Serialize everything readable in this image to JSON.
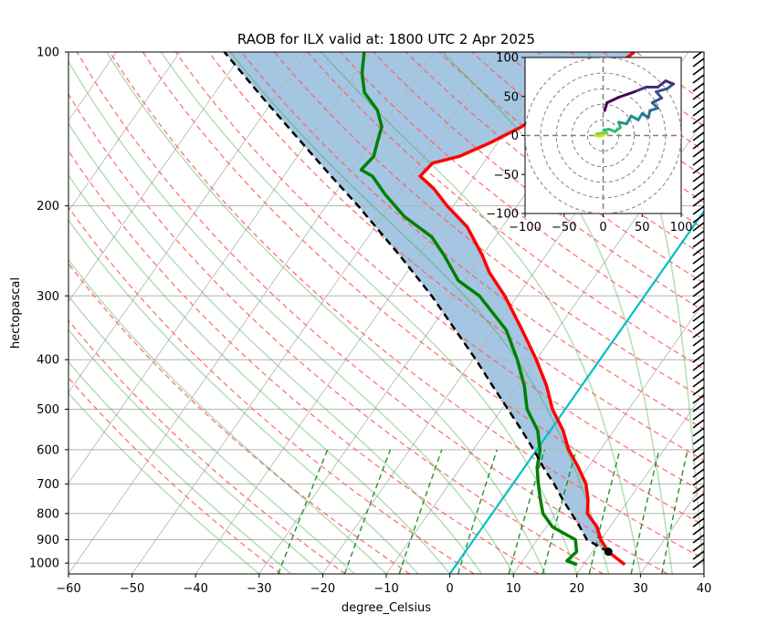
{
  "chart_data": {
    "type": "line",
    "title": "RAOB for ILX valid at: 1800 UTC 2 Apr 2025",
    "xlabel": "degree_Celsius",
    "ylabel": "hectopascal",
    "xlim": [
      -60,
      40
    ],
    "ylim": [
      1050,
      100
    ],
    "x_ticks": [
      "−60",
      "−50",
      "−40",
      "−30",
      "−20",
      "−10",
      "0",
      "10",
      "20",
      "30",
      "40"
    ],
    "y_ticks": [
      "100",
      "200",
      "300",
      "400",
      "500",
      "600",
      "700",
      "800",
      "900",
      "1000"
    ],
    "grid": true,
    "series": [
      {
        "role": "temperature",
        "color": "#ff0000",
        "points": [
          [
            1007,
            26.5
          ],
          [
            950,
            22.5
          ],
          [
            900,
            20.0
          ],
          [
            850,
            18.0
          ],
          [
            800,
            15.0
          ],
          [
            750,
            13.5
          ],
          [
            700,
            11.5
          ],
          [
            650,
            8.5
          ],
          [
            600,
            5.0
          ],
          [
            550,
            2.0
          ],
          [
            500,
            -2.0
          ],
          [
            450,
            -5.5
          ],
          [
            400,
            -10.0
          ],
          [
            350,
            -15.5
          ],
          [
            300,
            -22.0
          ],
          [
            270,
            -27.0
          ],
          [
            250,
            -30.0
          ],
          [
            220,
            -35.5
          ],
          [
            200,
            -41.0
          ],
          [
            185,
            -45.0
          ],
          [
            175,
            -48.5
          ],
          [
            165,
            -48.0
          ],
          [
            160,
            -44.5
          ],
          [
            150,
            -41.0
          ],
          [
            140,
            -38.0
          ],
          [
            130,
            -36.0
          ],
          [
            120,
            -33.0
          ],
          [
            110,
            -30.5
          ],
          [
            100,
            -28.5
          ]
        ]
      },
      {
        "role": "dewpoint",
        "color": "#008000",
        "points": [
          [
            1007,
            19.0
          ],
          [
            990,
            17.0
          ],
          [
            950,
            17.5
          ],
          [
            900,
            16.0
          ],
          [
            850,
            11.0
          ],
          [
            800,
            8.0
          ],
          [
            750,
            6.0
          ],
          [
            700,
            4.0
          ],
          [
            650,
            2.0
          ],
          [
            600,
            0.5
          ],
          [
            550,
            -2.0
          ],
          [
            500,
            -6.0
          ],
          [
            450,
            -9.0
          ],
          [
            400,
            -13.0
          ],
          [
            350,
            -18.0
          ],
          [
            300,
            -26.0
          ],
          [
            280,
            -31.0
          ],
          [
            250,
            -36.0
          ],
          [
            230,
            -40.0
          ],
          [
            210,
            -46.5
          ],
          [
            190,
            -52.0
          ],
          [
            175,
            -56.0
          ],
          [
            170,
            -58.5
          ],
          [
            160,
            -58.0
          ],
          [
            150,
            -59.0
          ],
          [
            140,
            -60.0
          ],
          [
            130,
            -62.5
          ],
          [
            120,
            -66.5
          ],
          [
            110,
            -69.0
          ],
          [
            100,
            -71.0
          ]
        ]
      },
      {
        "role": "parcel-profile",
        "color": "#000000",
        "style": "dashed",
        "points": [
          [
            950,
            22.5
          ],
          [
            900,
            17.8
          ],
          [
            850,
            15.3
          ],
          [
            800,
            12.5
          ],
          [
            750,
            9.5
          ],
          [
            700,
            6.5
          ],
          [
            650,
            3.0
          ],
          [
            600,
            -0.5
          ],
          [
            550,
            -4.5
          ],
          [
            500,
            -9.0
          ],
          [
            450,
            -14.0
          ],
          [
            400,
            -19.5
          ],
          [
            350,
            -26.0
          ],
          [
            300,
            -33.5
          ],
          [
            250,
            -43.0
          ],
          [
            200,
            -55.0
          ],
          [
            175,
            -62.5
          ],
          [
            150,
            -71.0
          ],
          [
            125,
            -81.0
          ],
          [
            100,
            -93.0
          ]
        ]
      }
    ],
    "lcl": {
      "pressure": 950,
      "temperature": 22.5
    },
    "hodograph": {
      "xlim": [
        -100,
        100
      ],
      "ylim": [
        -100,
        100
      ],
      "x_ticks": [
        "−100",
        "−50",
        "0",
        "50",
        "100"
      ],
      "y_ticks": [
        "100",
        "50",
        "0",
        "−50",
        "−100"
      ],
      "rings": [
        20,
        40,
        60,
        80,
        100
      ],
      "trace": [
        [
          2,
          2
        ],
        [
          0,
          0
        ],
        [
          -5,
          -1
        ],
        [
          -10,
          0
        ],
        [
          -8,
          2
        ],
        [
          -2,
          3
        ],
        [
          2,
          4
        ],
        [
          5,
          3
        ],
        [
          1,
          7
        ],
        [
          8,
          8
        ],
        [
          15,
          5
        ],
        [
          22,
          10
        ],
        [
          20,
          17
        ],
        [
          30,
          15
        ],
        [
          36,
          25
        ],
        [
          45,
          20
        ],
        [
          50,
          28
        ],
        [
          58,
          23
        ],
        [
          60,
          32
        ],
        [
          70,
          35
        ],
        [
          63,
          42
        ],
        [
          75,
          48
        ],
        [
          68,
          56
        ],
        [
          82,
          60
        ],
        [
          90,
          66
        ],
        [
          80,
          70
        ],
        [
          70,
          62
        ],
        [
          55,
          62
        ],
        [
          40,
          56
        ],
        [
          20,
          49
        ],
        [
          5,
          42
        ],
        [
          2,
          32
        ]
      ]
    }
  }
}
